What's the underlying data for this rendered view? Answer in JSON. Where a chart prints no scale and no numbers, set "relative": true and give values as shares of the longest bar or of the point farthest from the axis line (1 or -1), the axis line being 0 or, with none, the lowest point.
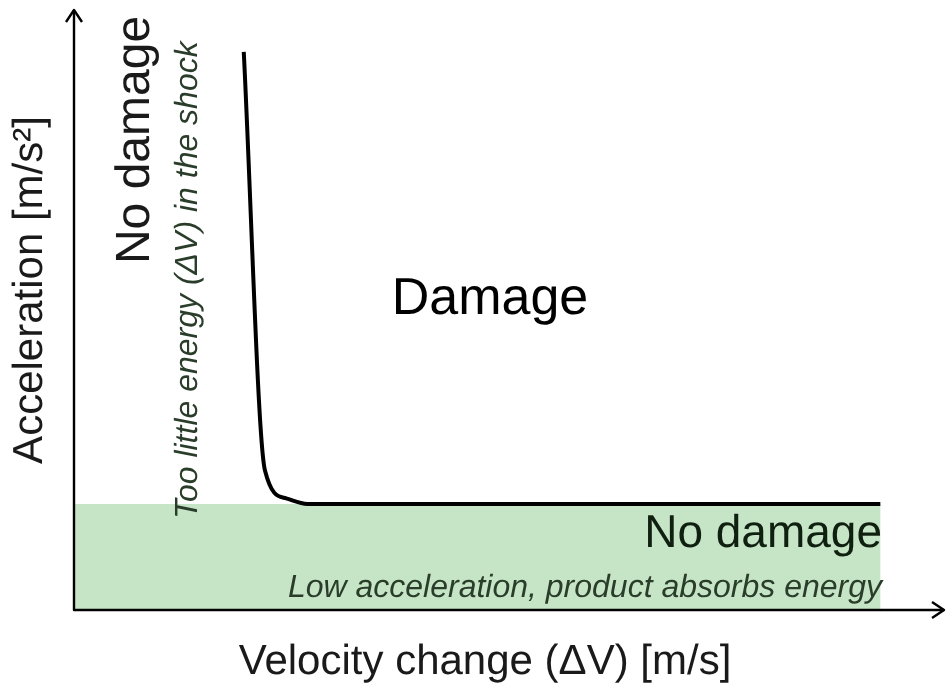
{
  "chart_data": {
    "type": "line",
    "relative": true,
    "xlabel": "Velocity change (ΔV) [m/s]",
    "ylabel": "Acceleration [m/s²]",
    "categories": [
      null,
      null,
      null,
      null,
      null,
      null,
      null,
      null,
      null,
      null,
      null,
      null,
      null,
      null,
      null,
      null,
      null,
      null,
      null,
      null,
      null,
      null,
      null,
      null,
      null,
      null,
      null,
      null,
      null,
      null,
      null,
      null,
      null,
      null,
      null,
      null,
      null,
      null,
      null,
      null,
      null,
      null
    ],
    "series": [
      {
        "color": "#000000",
        "values": [
          null,
          null,
          null,
          null,
          null,
          null,
          null,
          null,
          1.0,
          0.25,
          0.2,
          0.19,
          0.19,
          0.19,
          0.19,
          0.19,
          0.19,
          0.19,
          0.19,
          0.19,
          0.19,
          0.19,
          0.19,
          0.19,
          0.19,
          0.19,
          0.19,
          0.19,
          0.19,
          0.19,
          0.19,
          0.19,
          0.19,
          0.19,
          0.19,
          0.19,
          0.19,
          0.19,
          0.19,
          null,
          null,
          null
        ]
      }
    ],
    "bands": [
      {
        "axis": "y",
        "from": 0,
        "to": 0.19,
        "color": "#c6e5c6"
      }
    ],
    "annotations": [
      "No damage",
      "Too little energy (ΔV) in the shock",
      "Damage",
      "No damage",
      "Low acceleration, product absorbs energy"
    ],
    "legend": false,
    "marker": "none",
    "line_style": "solid"
  }
}
